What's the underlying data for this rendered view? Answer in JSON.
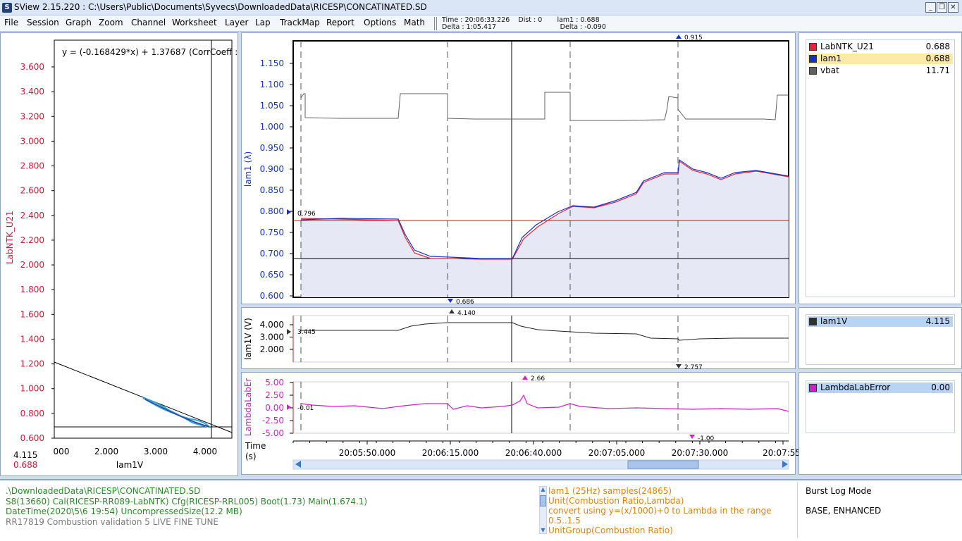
{
  "app": {
    "title": "SView 2.15.220  :  C:\\Users\\Public\\Documents\\Syvecs\\DownloadedData\\RICESP\\CONCATINATED.SD",
    "icon": "sview-logo-icon"
  },
  "menu": [
    "File",
    "Session",
    "Graph",
    "Zoom",
    "Channel",
    "Worksheet",
    "Layer",
    "Lap",
    "TrackMap",
    "Report",
    "Options",
    "Math"
  ],
  "cursor_info": {
    "line1": "Time : 20:06:33.226    Dist : 0       lam1 : 0.688",
    "line2": "Delta : 1:05.417                              Delta : -0.090"
  },
  "scatter": {
    "equation": "y = (-0.168429*x) + 1.37687  (CorrCoeff :",
    "ylabel": "LabNTK_U21",
    "xlabel": "lam1V",
    "yticks": [
      "3.600",
      "3.400",
      "3.200",
      "3.000",
      "2.800",
      "2.600",
      "2.400",
      "2.200",
      "2.000",
      "1.800",
      "1.600",
      "1.400",
      "1.200",
      "1.000",
      "0.800",
      "0.600"
    ],
    "xticks": [
      "000",
      "2.000",
      "3.000",
      "4.000"
    ],
    "readout_x": "4.115",
    "readout_y": "0.688"
  },
  "top_chart": {
    "ylabel": "lam1 (λ)",
    "yticks": [
      "1.150",
      "1.100",
      "1.050",
      "1.000",
      "0.950",
      "0.900",
      "0.850",
      "0.800",
      "0.750",
      "0.700",
      "0.650",
      "0.600"
    ],
    "max_marker": "0.915",
    "min_marker": "0.686",
    "start_value": "0.796"
  },
  "mid_chart": {
    "ylabel": "lam1V (V)",
    "yticks": [
      "4.000",
      "3.000",
      "2.000"
    ],
    "max_marker": "4.140",
    "min_marker": "2.757",
    "start_value": "3.445"
  },
  "bottom_chart": {
    "ylabel": "LambdaLabEr",
    "yticks": [
      "5.00",
      "2.50",
      "0.00",
      "-2.50",
      "-5.00"
    ],
    "max_marker": "2.66",
    "min_marker": "-1.00",
    "start_value": "-0.01"
  },
  "time_axis": {
    "label1": "Time",
    "label2": "(s)",
    "ticks": [
      "20:05:50.000",
      "20:06:15.000",
      "20:06:40.000",
      "20:07:05.000",
      "20:07:30.000",
      "20:07:55."
    ]
  },
  "legend_top": [
    {
      "name": "LabNTK_U21",
      "value": "0.688",
      "color": "#e8203c"
    },
    {
      "name": "lam1",
      "value": "0.688",
      "color": "#1530c8"
    },
    {
      "name": "vbat",
      "value": "11.71",
      "color": "#606060"
    }
  ],
  "legend_mid": {
    "name": "lam1V",
    "value": "4.115",
    "color": "#303030"
  },
  "legend_bottom": {
    "name": "LambdaLabError",
    "value": "0.00",
    "color": "#d020c8"
  },
  "info": {
    "path": ".\\DownloadedData\\RICESP\\CONCATINATED.SD",
    "line2": "S8(13660) Cal(RICESP-RR089-LabNTK) Cfg(RICESP-RRL005) Boot(1.73) Main(1.674.1)",
    "line3": "DateTime(2020\\5\\6 19:54) UncompressedSize(12.2 MB)",
    "line4": "RR17819 Combustion validation 5 LIVE FINE TUNE"
  },
  "channel_info": [
    "lam1 (25Hz) samples(24865)",
    "Unit(Combustion Ratio,Lambda)",
    "convert using y=(x/1000)+0 to Lambda in the range",
    "0.5..1.5",
    "UnitGroup(Combustion Ratio)"
  ],
  "burst": {
    "title": "Burst Log Mode",
    "modes": "BASE, ENHANCED"
  },
  "colors": {
    "lam1": "#1530c8",
    "labntk": "#e8203c",
    "vbat": "#606060",
    "lam1v": "#303030",
    "lambdalaberr": "#d020c8",
    "legend_highlight": "#fde9a8",
    "legend_header": "#b9d3f2"
  }
}
